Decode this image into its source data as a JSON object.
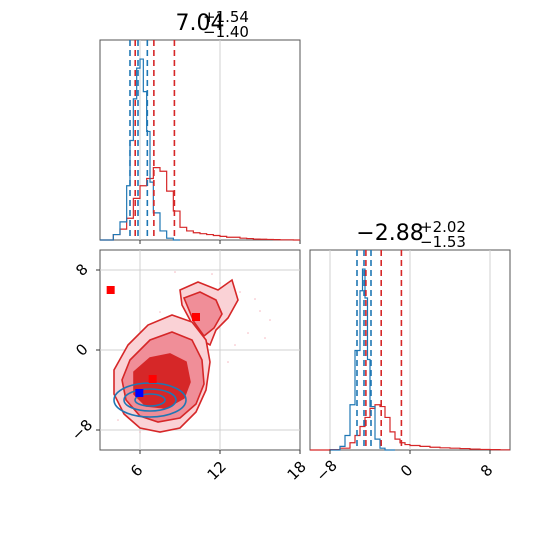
{
  "chart_data": [
    {
      "type": "histogram",
      "panel": "top-left",
      "title": {
        "value": "7.04",
        "plus": "+1.54",
        "minus": "−1.40"
      },
      "xlim": [
        3,
        18
      ],
      "grid": true,
      "series": [
        {
          "name": "",
          "color": "#d62728",
          "bins_x": [
            3.0,
            3.5,
            4.0,
            4.5,
            5.0,
            5.5,
            6.0,
            6.5,
            7.0,
            7.5,
            8.0,
            8.5,
            9.0,
            9.5,
            10.0,
            10.5,
            11.0,
            11.5,
            12.0,
            12.5,
            13.0,
            13.5,
            14.0,
            14.5,
            15.0,
            15.5,
            16.0,
            16.5,
            17.0,
            17.5
          ],
          "counts": [
            0,
            0,
            0.3,
            0.6,
            1.2,
            2.3,
            3.0,
            3.4,
            4.0,
            3.8,
            2.7,
            1.6,
            0.7,
            0.5,
            0.4,
            0.35,
            0.3,
            0.25,
            0.2,
            0.15,
            0.15,
            0.1,
            0.08,
            0.05,
            0.04,
            0.03,
            0.02,
            0.01,
            0.01,
            0
          ]
        },
        {
          "name": "",
          "color": "#1f77b4",
          "bins_x": [
            3.0,
            3.5,
            4.0,
            4.5,
            5.0,
            5.25,
            5.5,
            5.75,
            6.0,
            6.25,
            6.5,
            6.75,
            7.0,
            7.5,
            8.0,
            8.5
          ],
          "counts": [
            0,
            0,
            0.3,
            1.0,
            3.0,
            5.5,
            7.8,
            9.5,
            10.0,
            8.2,
            6.0,
            3.2,
            1.5,
            0.5,
            0.1,
            0
          ]
        }
      ],
      "quantiles": {
        "red": [
          5.64,
          7.04,
          8.58
        ],
        "blue": [
          5.25,
          5.85,
          6.55
        ]
      }
    },
    {
      "type": "histogram",
      "panel": "bottom-right",
      "title": {
        "value": "−2.88",
        "plus": "+2.02",
        "minus": "−1.53"
      },
      "xlim": [
        -10,
        10
      ],
      "xticks": [
        "−8",
        "0",
        "8"
      ],
      "grid": true,
      "series": [
        {
          "name": "",
          "color": "#d62728",
          "bins_x": [
            -10,
            -9,
            -8,
            -7,
            -6,
            -5.5,
            -5,
            -4.5,
            -4,
            -3.5,
            -3,
            -2.5,
            -2,
            -1.5,
            -1,
            -0.5,
            0,
            1,
            2,
            3,
            4,
            5,
            6,
            7,
            8,
            9
          ],
          "counts": [
            0,
            0,
            0.02,
            0.1,
            0.4,
            0.8,
            1.3,
            1.8,
            2.3,
            2.5,
            2.4,
            1.8,
            1.0,
            0.6,
            0.4,
            0.3,
            0.25,
            0.2,
            0.15,
            0.12,
            0.1,
            0.08,
            0.05,
            0.03,
            0.02,
            0.01
          ]
        },
        {
          "name": "",
          "color": "#1f77b4",
          "bins_x": [
            -8,
            -7,
            -6.5,
            -6,
            -5.5,
            -5,
            -4.75,
            -4.5,
            -4.25,
            -4,
            -3.5,
            -3,
            -2.5
          ],
          "counts": [
            0,
            0.2,
            0.8,
            2.5,
            5.5,
            8.8,
            10.0,
            8.4,
            5.0,
            2.4,
            0.6,
            0.1,
            0
          ]
        }
      ],
      "quantiles": {
        "red": [
          -4.41,
          -2.88,
          -0.86
        ],
        "blue": [
          -5.3,
          -4.6,
          -3.9
        ]
      }
    },
    {
      "type": "contour",
      "panel": "bottom-left",
      "xlim": [
        3,
        18
      ],
      "ylim": [
        -10,
        10
      ],
      "xticks": [
        "6",
        "12",
        "18"
      ],
      "yticks": [
        "8",
        "0",
        "−8"
      ],
      "grid": true,
      "markers": [
        {
          "x": 3.8,
          "y": 6.0,
          "color": "#ff0000"
        },
        {
          "x": 10.2,
          "y": 3.3,
          "color": "#ff0000"
        },
        {
          "x": 6.95,
          "y": -2.9,
          "color": "#ff0000"
        },
        {
          "x": 5.95,
          "y": -4.3,
          "color": "#0000ff"
        }
      ]
    }
  ]
}
